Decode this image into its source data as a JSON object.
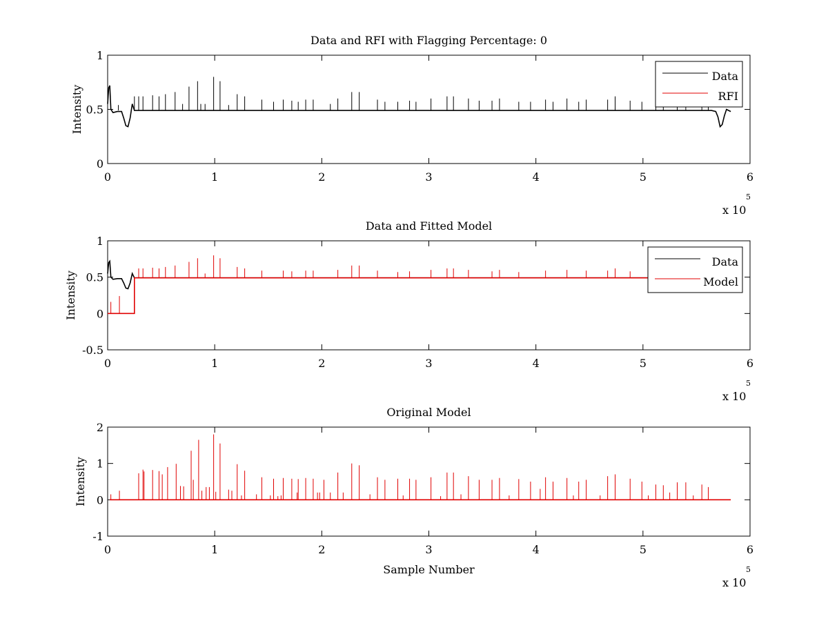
{
  "figure": {
    "exponent_text": "x 10",
    "exponent_power": "5"
  },
  "chart_data": [
    {
      "type": "line",
      "title": "Data and RFI with Flagging Percentage: 0",
      "xlabel": "",
      "ylabel": "Intensity",
      "xlim": [
        0,
        6
      ],
      "ylim": [
        0,
        1
      ],
      "x_ticks": [
        0,
        1,
        2,
        3,
        4,
        5,
        6
      ],
      "y_ticks": [
        0,
        0.5,
        1
      ],
      "x_tick_labels": [
        "0",
        "1",
        "2",
        "3",
        "4",
        "5",
        "6"
      ],
      "y_tick_labels": [
        "0",
        "0.5",
        "1"
      ],
      "x_multiplier": "x 10^5",
      "grid": false,
      "legend": {
        "placement": "top-right",
        "entries": [
          "Data",
          "RFI"
        ]
      },
      "series": [
        {
          "name": "Data",
          "color": "#000000",
          "baseline": 0.49,
          "x": [
            0,
            0.01,
            0.02,
            0.03,
            0.05,
            0.09,
            0.13,
            0.15,
            0.17,
            0.19,
            0.21,
            0.23,
            0.25,
            0.5,
            1.0,
            2.0,
            3.0,
            4.0,
            5.0,
            5.55,
            5.64,
            5.68,
            5.7,
            5.72,
            5.74,
            5.76,
            5.78,
            5.8,
            5.82
          ],
          "y": [
            0.55,
            0.7,
            0.72,
            0.5,
            0.47,
            0.48,
            0.48,
            0.42,
            0.35,
            0.34,
            0.42,
            0.55,
            0.49,
            0.49,
            0.49,
            0.49,
            0.49,
            0.49,
            0.49,
            0.49,
            0.49,
            0.48,
            0.43,
            0.34,
            0.36,
            0.44,
            0.5,
            0.49,
            0.48
          ],
          "spikes": [
            [
              0.1,
              0.54
            ],
            [
              0.25,
              0.62
            ],
            [
              0.29,
              0.62
            ],
            [
              0.33,
              0.62
            ],
            [
              0.42,
              0.63
            ],
            [
              0.48,
              0.62
            ],
            [
              0.54,
              0.64
            ],
            [
              0.63,
              0.66
            ],
            [
              0.7,
              0.55
            ],
            [
              0.76,
              0.71
            ],
            [
              0.84,
              0.76
            ],
            [
              0.87,
              0.55
            ],
            [
              0.91,
              0.55
            ],
            [
              0.99,
              0.8
            ],
            [
              1.05,
              0.76
            ],
            [
              1.13,
              0.54
            ],
            [
              1.21,
              0.64
            ],
            [
              1.28,
              0.62
            ],
            [
              1.44,
              0.59
            ],
            [
              1.55,
              0.57
            ],
            [
              1.64,
              0.59
            ],
            [
              1.72,
              0.58
            ],
            [
              1.78,
              0.57
            ],
            [
              1.85,
              0.59
            ],
            [
              1.92,
              0.59
            ],
            [
              2.08,
              0.55
            ],
            [
              2.15,
              0.6
            ],
            [
              2.28,
              0.66
            ],
            [
              2.35,
              0.66
            ],
            [
              2.52,
              0.59
            ],
            [
              2.59,
              0.57
            ],
            [
              2.71,
              0.57
            ],
            [
              2.82,
              0.58
            ],
            [
              2.88,
              0.57
            ],
            [
              3.02,
              0.6
            ],
            [
              3.17,
              0.62
            ],
            [
              3.23,
              0.62
            ],
            [
              3.37,
              0.6
            ],
            [
              3.47,
              0.58
            ],
            [
              3.59,
              0.58
            ],
            [
              3.66,
              0.6
            ],
            [
              3.84,
              0.57
            ],
            [
              3.95,
              0.57
            ],
            [
              4.09,
              0.59
            ],
            [
              4.16,
              0.57
            ],
            [
              4.29,
              0.6
            ],
            [
              4.4,
              0.57
            ],
            [
              4.47,
              0.59
            ],
            [
              4.67,
              0.59
            ],
            [
              4.74,
              0.62
            ],
            [
              4.88,
              0.58
            ],
            [
              4.99,
              0.57
            ],
            [
              5.12,
              0.57
            ],
            [
              5.19,
              0.56
            ],
            [
              5.32,
              0.6
            ],
            [
              5.4,
              0.59
            ],
            [
              5.55,
              0.56
            ],
            [
              5.61,
              0.59
            ]
          ]
        },
        {
          "name": "RFI",
          "color": "#e00000",
          "x": [],
          "y": []
        }
      ]
    },
    {
      "type": "line",
      "title": "Data and Fitted Model",
      "xlabel": "",
      "ylabel": "Intensity",
      "xlim": [
        0,
        6
      ],
      "ylim": [
        -0.5,
        1
      ],
      "x_ticks": [
        0,
        1,
        2,
        3,
        4,
        5,
        6
      ],
      "y_ticks": [
        -0.5,
        0,
        0.5,
        1
      ],
      "x_tick_labels": [
        "0",
        "1",
        "2",
        "3",
        "4",
        "5",
        "6"
      ],
      "y_tick_labels": [
        "-0.5",
        "0",
        "0.5",
        "1"
      ],
      "x_multiplier": "x 10^5",
      "grid": false,
      "legend": {
        "placement": "top-right",
        "entries": [
          "Data",
          "Model"
        ]
      },
      "series": [
        {
          "name": "Data",
          "color": "#000000",
          "x": [
            0,
            0.01,
            0.02,
            0.03,
            0.05,
            0.09,
            0.13,
            0.15,
            0.17,
            0.19,
            0.21,
            0.23,
            0.25,
            1.0,
            2.0,
            3.0,
            4.0,
            5.0,
            5.2
          ],
          "y": [
            0.55,
            0.7,
            0.72,
            0.5,
            0.47,
            0.48,
            0.48,
            0.42,
            0.35,
            0.34,
            0.42,
            0.55,
            0.49,
            0.49,
            0.49,
            0.49,
            0.49,
            0.49,
            0.49
          ]
        },
        {
          "name": "Model",
          "color": "#e00000",
          "x": [
            0,
            0.25,
            0.25,
            1.0,
            2.0,
            3.0,
            4.0,
            5.0,
            5.2
          ],
          "y": [
            0,
            0,
            0.49,
            0.49,
            0.49,
            0.49,
            0.49,
            0.49,
            0.49
          ],
          "spikes": [
            [
              0.03,
              0.16
            ],
            [
              0.11,
              0.24
            ],
            [
              0.29,
              0.62
            ],
            [
              0.33,
              0.62
            ],
            [
              0.42,
              0.63
            ],
            [
              0.48,
              0.62
            ],
            [
              0.54,
              0.64
            ],
            [
              0.63,
              0.66
            ],
            [
              0.76,
              0.71
            ],
            [
              0.84,
              0.76
            ],
            [
              0.91,
              0.55
            ],
            [
              0.99,
              0.8
            ],
            [
              1.05,
              0.76
            ],
            [
              1.21,
              0.64
            ],
            [
              1.28,
              0.62
            ],
            [
              1.44,
              0.59
            ],
            [
              1.64,
              0.59
            ],
            [
              1.72,
              0.58
            ],
            [
              1.85,
              0.59
            ],
            [
              1.92,
              0.59
            ],
            [
              2.15,
              0.6
            ],
            [
              2.28,
              0.66
            ],
            [
              2.35,
              0.66
            ],
            [
              2.52,
              0.59
            ],
            [
              2.71,
              0.57
            ],
            [
              2.82,
              0.58
            ],
            [
              3.02,
              0.6
            ],
            [
              3.17,
              0.62
            ],
            [
              3.23,
              0.62
            ],
            [
              3.37,
              0.6
            ],
            [
              3.59,
              0.58
            ],
            [
              3.66,
              0.6
            ],
            [
              3.84,
              0.57
            ],
            [
              4.09,
              0.59
            ],
            [
              4.29,
              0.6
            ],
            [
              4.47,
              0.59
            ],
            [
              4.67,
              0.59
            ],
            [
              4.74,
              0.62
            ],
            [
              4.88,
              0.58
            ]
          ]
        }
      ]
    },
    {
      "type": "line",
      "title": "Original Model",
      "xlabel": "Sample Number",
      "ylabel": "Intensity",
      "xlim": [
        0,
        6
      ],
      "ylim": [
        -1,
        2
      ],
      "x_ticks": [
        0,
        1,
        2,
        3,
        4,
        5,
        6
      ],
      "y_ticks": [
        -1,
        0,
        1,
        2
      ],
      "x_tick_labels": [
        "0",
        "1",
        "2",
        "3",
        "4",
        "5",
        "6"
      ],
      "y_tick_labels": [
        "-1",
        "0",
        "1",
        "2"
      ],
      "x_multiplier": "x 10^5",
      "grid": false,
      "series": [
        {
          "color": "#e00000",
          "x": [
            0.02,
            5.82
          ],
          "y": [
            0,
            0
          ],
          "spikes": [
            [
              0.03,
              0.15
            ],
            [
              0.11,
              0.25
            ],
            [
              0.29,
              0.73
            ],
            [
              0.33,
              0.83
            ],
            [
              0.34,
              0.78
            ],
            [
              0.42,
              0.82
            ],
            [
              0.48,
              0.79
            ],
            [
              0.51,
              0.7
            ],
            [
              0.56,
              0.9
            ],
            [
              0.64,
              0.99
            ],
            [
              0.68,
              0.38
            ],
            [
              0.71,
              0.37
            ],
            [
              0.78,
              1.35
            ],
            [
              0.8,
              0.55
            ],
            [
              0.85,
              1.65
            ],
            [
              0.88,
              0.25
            ],
            [
              0.92,
              0.35
            ],
            [
              0.95,
              0.35
            ],
            [
              0.99,
              1.8
            ],
            [
              1.01,
              0.22
            ],
            [
              1.05,
              1.55
            ],
            [
              1.13,
              0.28
            ],
            [
              1.16,
              0.25
            ],
            [
              1.21,
              0.98
            ],
            [
              1.25,
              0.12
            ],
            [
              1.28,
              0.8
            ],
            [
              1.39,
              0.15
            ],
            [
              1.44,
              0.62
            ],
            [
              1.52,
              0.12
            ],
            [
              1.55,
              0.58
            ],
            [
              1.59,
              0.1
            ],
            [
              1.62,
              0.12
            ],
            [
              1.64,
              0.6
            ],
            [
              1.72,
              0.58
            ],
            [
              1.77,
              0.2
            ],
            [
              1.78,
              0.57
            ],
            [
              1.85,
              0.6
            ],
            [
              1.92,
              0.58
            ],
            [
              1.96,
              0.2
            ],
            [
              1.98,
              0.2
            ],
            [
              2.02,
              0.55
            ],
            [
              2.08,
              0.2
            ],
            [
              2.15,
              0.75
            ],
            [
              2.2,
              0.2
            ],
            [
              2.28,
              1.0
            ],
            [
              2.35,
              0.95
            ],
            [
              2.45,
              0.15
            ],
            [
              2.52,
              0.62
            ],
            [
              2.59,
              0.55
            ],
            [
              2.71,
              0.58
            ],
            [
              2.76,
              0.12
            ],
            [
              2.82,
              0.58
            ],
            [
              2.88,
              0.55
            ],
            [
              3.02,
              0.62
            ],
            [
              3.11,
              0.1
            ],
            [
              3.17,
              0.75
            ],
            [
              3.23,
              0.75
            ],
            [
              3.3,
              0.15
            ],
            [
              3.37,
              0.65
            ],
            [
              3.47,
              0.55
            ],
            [
              3.59,
              0.55
            ],
            [
              3.66,
              0.6
            ],
            [
              3.75,
              0.12
            ],
            [
              3.84,
              0.57
            ],
            [
              3.95,
              0.5
            ],
            [
              4.04,
              0.3
            ],
            [
              4.09,
              0.62
            ],
            [
              4.16,
              0.5
            ],
            [
              4.29,
              0.6
            ],
            [
              4.35,
              0.12
            ],
            [
              4.4,
              0.5
            ],
            [
              4.47,
              0.55
            ],
            [
              4.6,
              0.12
            ],
            [
              4.67,
              0.65
            ],
            [
              4.74,
              0.7
            ],
            [
              4.88,
              0.58
            ],
            [
              4.99,
              0.5
            ],
            [
              5.05,
              0.12
            ],
            [
              5.12,
              0.42
            ],
            [
              5.19,
              0.4
            ],
            [
              5.25,
              0.2
            ],
            [
              5.32,
              0.48
            ],
            [
              5.4,
              0.48
            ],
            [
              5.47,
              0.12
            ],
            [
              5.55,
              0.42
            ],
            [
              5.61,
              0.35
            ]
          ]
        }
      ]
    }
  ]
}
